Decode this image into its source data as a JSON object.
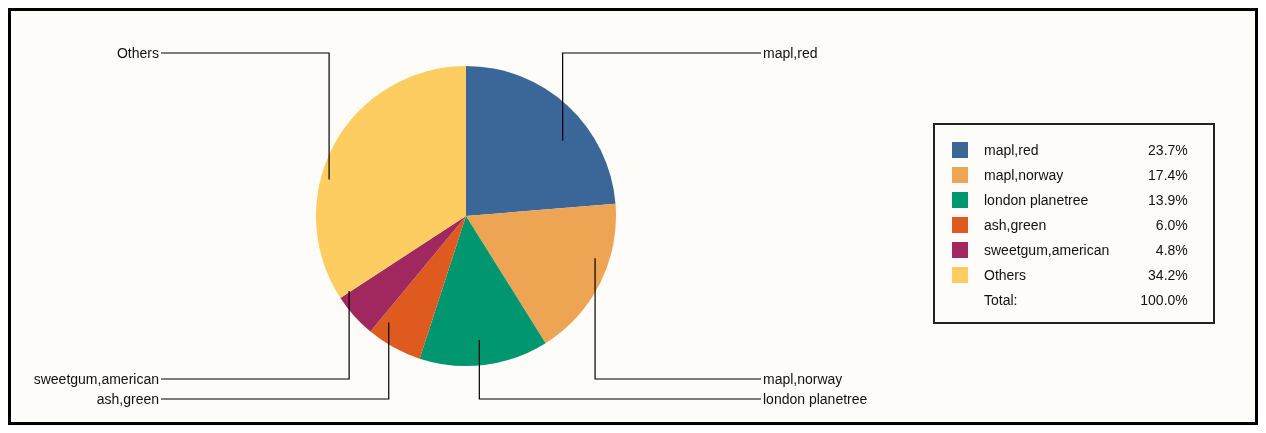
{
  "chart_data": {
    "type": "pie",
    "categories": [
      "mapl,red",
      "mapl,norway",
      "london planetree",
      "ash,green",
      "sweetgum,american",
      "Others"
    ],
    "values": [
      23.7,
      17.4,
      13.9,
      6.0,
      4.8,
      34.2
    ],
    "value_labels": [
      "23.7%",
      "17.4%",
      "13.9%",
      "6.0%",
      "4.8%",
      "34.2%"
    ],
    "colors": [
      "#3a6698",
      "#eda453",
      "#009670",
      "#df5a1e",
      "#a0285f",
      "#fecd62"
    ],
    "legend": "right",
    "annotations": [
      "Total:",
      "100.0%"
    ]
  }
}
